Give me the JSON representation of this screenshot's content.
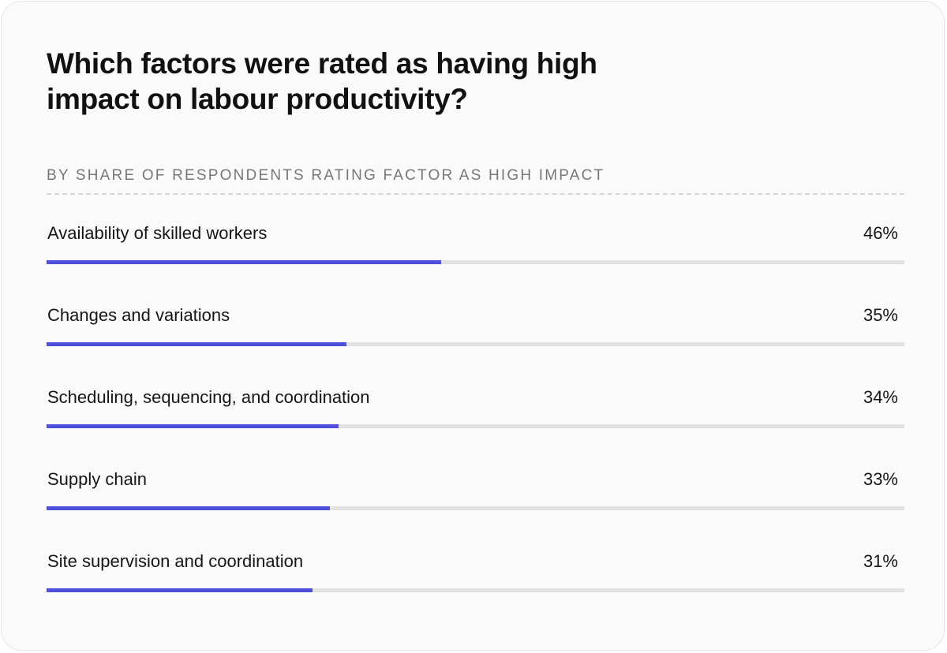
{
  "chart_data": {
    "type": "bar",
    "orientation": "horizontal",
    "title": "Which factors were rated as having high impact on labour productivity?",
    "subtitle": "By share of respondents rating factor as high impact",
    "categories": [
      "Availability of skilled workers",
      "Changes and variations",
      "Scheduling, sequencing, and coordination",
      "Supply chain",
      "Site supervision and coordination"
    ],
    "values": [
      46,
      35,
      34,
      33,
      31
    ],
    "value_labels": [
      "46%",
      "35%",
      "34%",
      "33%",
      "31%"
    ],
    "xlim": [
      0,
      100
    ],
    "unit": "%",
    "bar_color": "#4f4fdc",
    "track_color": "#e2e2e2"
  }
}
